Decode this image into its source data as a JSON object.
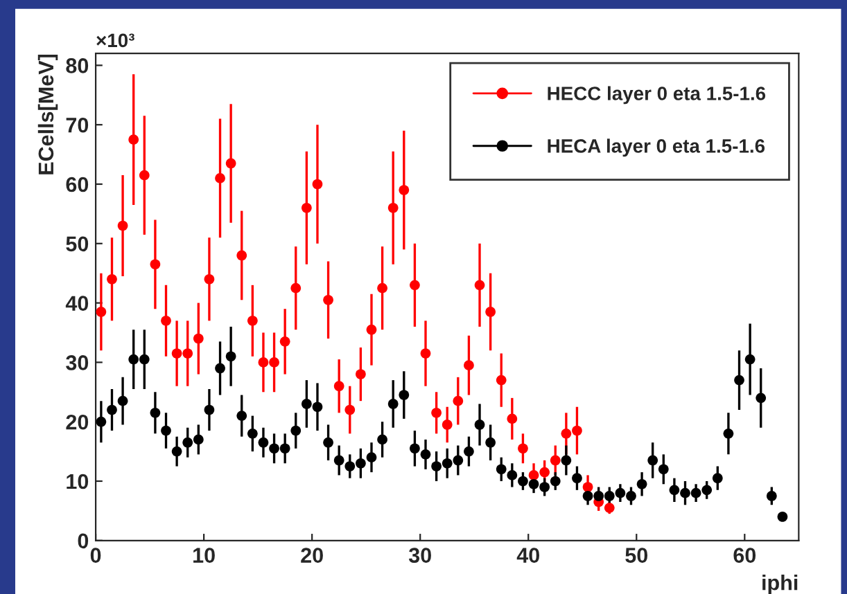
{
  "chart_data": {
    "type": "scatter",
    "ylabel": "ECells[MeV]",
    "xlabel": "iphi",
    "annotations": [
      "×10³"
    ],
    "xlim": [
      0,
      65
    ],
    "xticks": [
      0,
      10,
      20,
      30,
      40,
      50,
      60
    ],
    "ylim": [
      0,
      82
    ],
    "yticks": [
      0,
      10,
      20,
      30,
      40,
      50,
      60,
      70,
      80
    ],
    "grid": false,
    "legend": "top right",
    "marker": "circle",
    "series": [
      {
        "name": "HECC layer 0 eta 1.5-1.6",
        "color": "#ff0000",
        "x": [
          0.5,
          1.5,
          2.5,
          3.5,
          4.5,
          5.5,
          6.5,
          7.5,
          8.5,
          9.5,
          10.5,
          11.5,
          12.5,
          13.5,
          14.5,
          15.5,
          16.5,
          17.5,
          18.5,
          19.5,
          20.5,
          21.5,
          22.5,
          23.5,
          24.5,
          25.5,
          26.5,
          27.5,
          28.5,
          29.5,
          30.5,
          31.5,
          32.5,
          33.5,
          34.5,
          35.5,
          36.5,
          37.5,
          38.5,
          39.5,
          40.5,
          41.5,
          42.5,
          43.5,
          44.5,
          45.5,
          46.5,
          47.5
        ],
        "values": [
          38.5,
          44,
          53,
          67.5,
          61.5,
          46.5,
          37,
          31.5,
          31.5,
          34,
          44,
          61,
          63.5,
          48,
          37,
          30,
          30,
          33.5,
          42.5,
          56,
          60,
          40.5,
          26,
          22,
          28,
          35.5,
          42.5,
          56,
          59,
          43,
          31.5,
          21.5,
          19.5,
          23.5,
          29.5,
          43,
          38.5,
          27,
          20.5,
          15.5,
          11,
          11.5,
          13.5,
          18,
          18.5,
          9,
          6.5,
          5.5
        ],
        "errors": [
          6.5,
          7,
          8.5,
          11,
          10,
          7.5,
          6,
          5.5,
          5.5,
          6,
          7,
          10,
          10,
          7.5,
          6,
          5,
          5,
          5.5,
          7,
          9.5,
          10,
          6.5,
          4.5,
          4,
          4.5,
          6,
          7,
          9.5,
          10,
          7,
          5.5,
          3.5,
          3,
          4,
          5,
          7,
          6.5,
          4.5,
          3.5,
          2.5,
          2,
          2,
          2.5,
          3.5,
          4,
          2,
          1.5,
          1
        ]
      },
      {
        "name": "HECA layer 0 eta 1.5-1.6",
        "color": "#000000",
        "x": [
          0.5,
          1.5,
          2.5,
          3.5,
          4.5,
          5.5,
          6.5,
          7.5,
          8.5,
          9.5,
          10.5,
          11.5,
          12.5,
          13.5,
          14.5,
          15.5,
          16.5,
          17.5,
          18.5,
          19.5,
          20.5,
          21.5,
          22.5,
          23.5,
          24.5,
          25.5,
          26.5,
          27.5,
          28.5,
          29.5,
          30.5,
          31.5,
          32.5,
          33.5,
          34.5,
          35.5,
          36.5,
          37.5,
          38.5,
          39.5,
          40.5,
          41.5,
          42.5,
          43.5,
          44.5,
          45.5,
          46.5,
          47.5,
          48.5,
          49.5,
          50.5,
          51.5,
          52.5,
          53.5,
          54.5,
          55.5,
          56.5,
          57.5,
          58.5,
          59.5,
          60.5,
          61.5,
          62.5,
          63.5
        ],
        "values": [
          20,
          22,
          23.5,
          30.5,
          30.5,
          21.5,
          18.5,
          15,
          16.5,
          17,
          22,
          29,
          31,
          21,
          18,
          16.5,
          15.5,
          15.5,
          18.5,
          23,
          22.5,
          16.5,
          13.5,
          12.5,
          13,
          14,
          17,
          23,
          24.5,
          15.5,
          14.5,
          12.5,
          13,
          13.5,
          15,
          19.5,
          16.5,
          12,
          11,
          10,
          9.5,
          9,
          10,
          13.5,
          10.5,
          7.5,
          7.5,
          7.5,
          8,
          7.5,
          9.5,
          13.5,
          12,
          8.5,
          8,
          8,
          8.5,
          10.5,
          18,
          27,
          30.5,
          24,
          7.5,
          4
        ],
        "errors": [
          3.5,
          3.5,
          4,
          5,
          5,
          3.5,
          3,
          2.5,
          2.5,
          2.5,
          3.5,
          4.5,
          5,
          3.5,
          3,
          2.5,
          2.5,
          2.5,
          3,
          4,
          4,
          3,
          2.5,
          2,
          2.5,
          2.5,
          3,
          4,
          4,
          3,
          2.5,
          2.5,
          2.5,
          2.5,
          2.5,
          3.5,
          3,
          2,
          2,
          1.5,
          1.5,
          1.5,
          1.5,
          2.5,
          2,
          1.5,
          1.5,
          1.5,
          1.5,
          1.5,
          2,
          3,
          2.5,
          2,
          2,
          1.5,
          1.5,
          2,
          3.5,
          5,
          6,
          5,
          1.5,
          0.5
        ]
      }
    ]
  }
}
